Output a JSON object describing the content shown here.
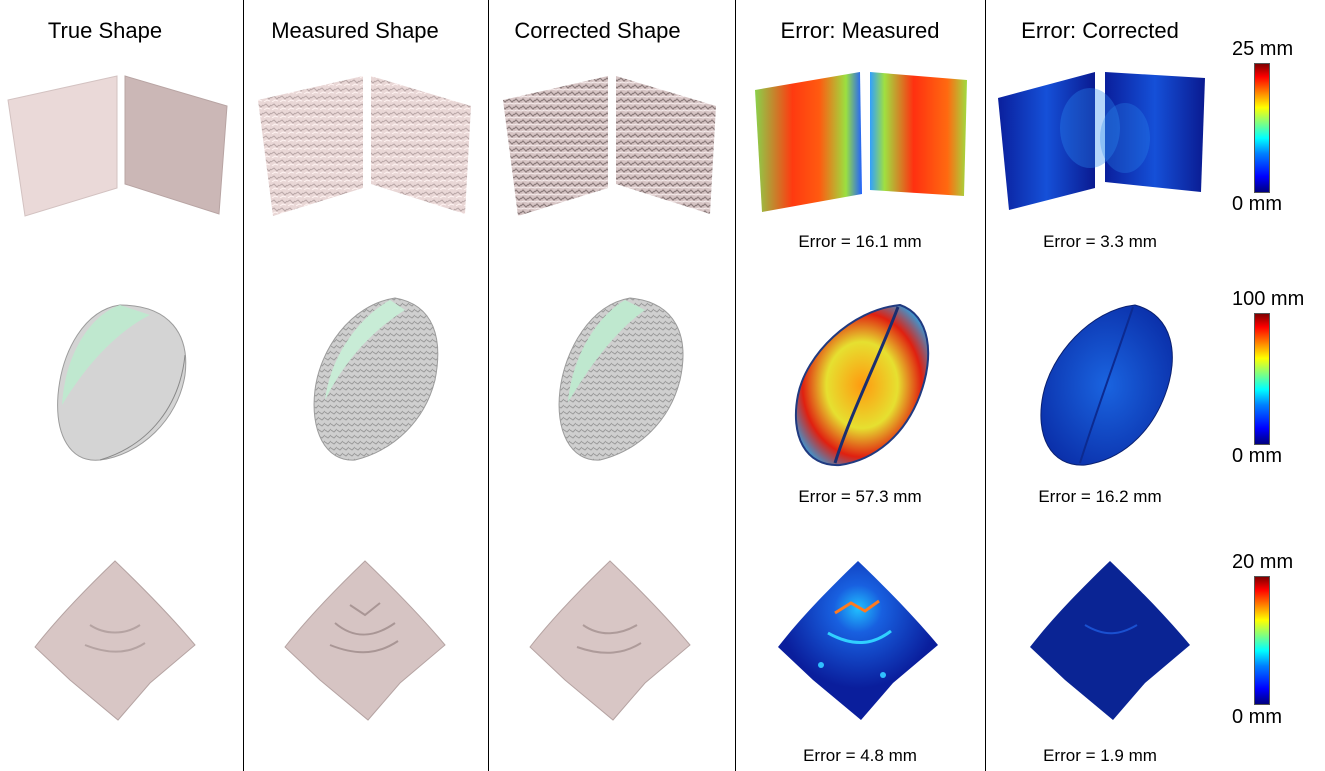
{
  "headers": [
    "True Shape",
    "Measured Shape",
    "Corrected Shape",
    "Error: Measured",
    "Error: Corrected"
  ],
  "rows": [
    {
      "colorbar_max": "25 mm",
      "colorbar_min": "0 mm",
      "error_measured": "Error = 16.1 mm",
      "error_corrected": "Error = 3.3 mm"
    },
    {
      "colorbar_max": "100 mm",
      "colorbar_min": "0 mm",
      "error_measured": "Error = 57.3 mm",
      "error_corrected": "Error = 16.2 mm"
    },
    {
      "colorbar_max": "20 mm",
      "colorbar_min": "0 mm",
      "error_measured": "Error = 4.8 mm",
      "error_corrected": "Error = 1.9 mm"
    }
  ]
}
